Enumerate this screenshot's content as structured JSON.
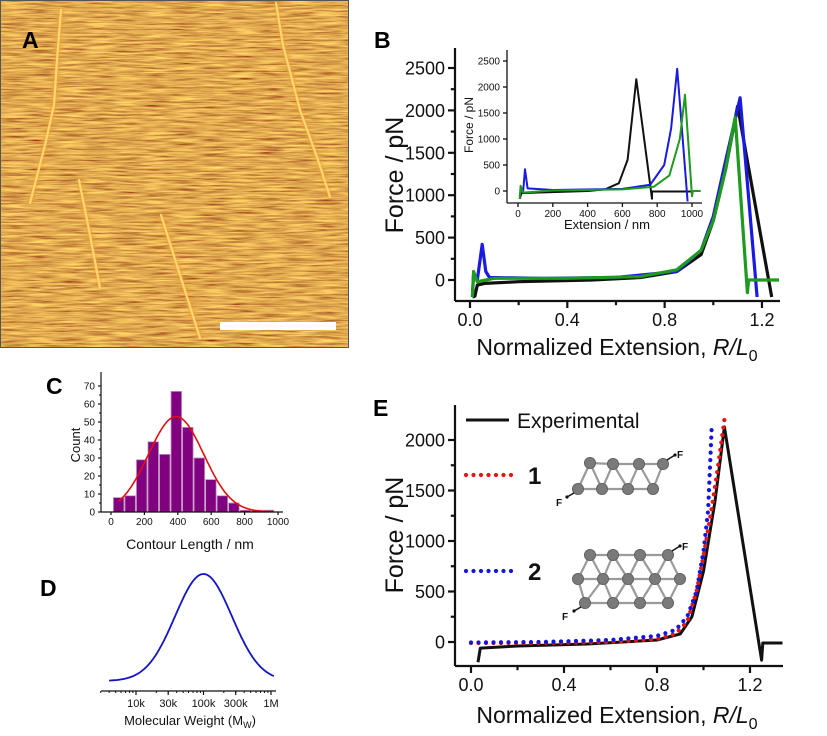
{
  "panel_labels": {
    "a": "A",
    "b": "B",
    "c": "C",
    "d": "D",
    "e": "E"
  },
  "panel_a": {
    "colors": {
      "background": "#bf6613",
      "fiber": "#f7d774",
      "scale_bar": "#ffffff"
    }
  },
  "chart_data": [
    {
      "panel": "B",
      "type": "line",
      "xlabel_prefix": "Normalized Extension, ",
      "xlabel_var": "R/L",
      "xlabel_sub": "0",
      "ylabel": "Force / pN",
      "xlim": [
        -0.06,
        1.275
      ],
      "ylim": [
        -250,
        2700
      ],
      "xticks": [
        0,
        0.4,
        0.8,
        1.2
      ],
      "xtick_labels": [
        "0.0",
        "0.4",
        "0.8",
        "1.2"
      ],
      "xminor": [
        0.2,
        0.6,
        1.0
      ],
      "yticks": [
        0,
        500,
        1000,
        1500,
        2000,
        2500
      ],
      "ytick_labels": [
        "0",
        "500",
        "1000",
        "1500",
        "2000",
        "2500"
      ],
      "grid": false,
      "series": [
        {
          "color": "#111111",
          "points": [
            [
              0.01,
              -200
            ],
            [
              0.02,
              -190
            ],
            [
              0.03,
              -60
            ],
            [
              0.06,
              -40
            ],
            [
              0.2,
              -20
            ],
            [
              0.5,
              0
            ],
            [
              0.7,
              30
            ],
            [
              0.85,
              100
            ],
            [
              0.95,
              300
            ],
            [
              1.0,
              700
            ],
            [
              1.05,
              1300
            ],
            [
              1.1,
              2050
            ],
            [
              1.24,
              -200
            ]
          ]
        },
        {
          "color": "#1a1ae0",
          "points": [
            [
              0.01,
              -200
            ],
            [
              0.015,
              80
            ],
            [
              0.03,
              0
            ],
            [
              0.05,
              420
            ],
            [
              0.065,
              100
            ],
            [
              0.08,
              30
            ],
            [
              0.3,
              20
            ],
            [
              0.6,
              30
            ],
            [
              0.85,
              100
            ],
            [
              0.95,
              350
            ],
            [
              1.0,
              750
            ],
            [
              1.05,
              1400
            ],
            [
              1.11,
              2150
            ],
            [
              1.18,
              -200
            ]
          ]
        },
        {
          "color": "#1e9a1e",
          "points": [
            [
              0.01,
              -200
            ],
            [
              0.015,
              100
            ],
            [
              0.03,
              -20
            ],
            [
              0.1,
              20
            ],
            [
              0.4,
              20
            ],
            [
              0.7,
              40
            ],
            [
              0.85,
              120
            ],
            [
              0.95,
              350
            ],
            [
              1.0,
              700
            ],
            [
              1.05,
              1300
            ],
            [
              1.09,
              1920
            ],
            [
              1.14,
              -150
            ],
            [
              1.145,
              0
            ],
            [
              1.27,
              0
            ]
          ]
        }
      ],
      "inset": {
        "type": "line",
        "xlabel": "Extension / nm",
        "ylabel": "Force / pN",
        "xlim": [
          -60,
          1060
        ],
        "ylim": [
          -250,
          2700
        ],
        "xticks": [
          0,
          200,
          400,
          600,
          800,
          1000
        ],
        "xtick_labels": [
          "0",
          "200",
          "400",
          "600",
          "800",
          "1000"
        ],
        "yticks": [
          0,
          500,
          1000,
          1500,
          2000,
          2500
        ],
        "ytick_labels": [
          "0",
          "500",
          "1000",
          "1500",
          "2000",
          "2500"
        ],
        "series": [
          {
            "color": "#111111",
            "points": [
              [
                10,
                -150
              ],
              [
                20,
                -40
              ],
              [
                100,
                -30
              ],
              [
                400,
                0
              ],
              [
                500,
                30
              ],
              [
                580,
                150
              ],
              [
                630,
                600
              ],
              [
                680,
                2150
              ],
              [
                770,
                -150
              ],
              [
                770,
                -10
              ],
              [
                1000,
                -10
              ]
            ]
          },
          {
            "color": "#1a1ae0",
            "points": [
              [
                10,
                -100
              ],
              [
                20,
                50
              ],
              [
                30,
                0
              ],
              [
                40,
                420
              ],
              [
                55,
                50
              ],
              [
                200,
                20
              ],
              [
                600,
                40
              ],
              [
                760,
                120
              ],
              [
                840,
                500
              ],
              [
                880,
                1200
              ],
              [
                915,
                2350
              ],
              [
                975,
                -200
              ]
            ]
          },
          {
            "color": "#1e9a1e",
            "points": [
              [
                10,
                -150
              ],
              [
                15,
                100
              ],
              [
                30,
                -30
              ],
              [
                200,
                10
              ],
              [
                600,
                30
              ],
              [
                780,
                80
              ],
              [
                870,
                300
              ],
              [
                930,
                1000
              ],
              [
                960,
                1850
              ],
              [
                1000,
                -100
              ],
              [
                1005,
                0
              ],
              [
                1050,
                0
              ]
            ]
          }
        ]
      }
    },
    {
      "panel": "C",
      "type": "bar",
      "xlabel": "Contour Length / nm",
      "ylabel": "Count",
      "xlim": [
        -60,
        1030
      ],
      "ylim": [
        0,
        75
      ],
      "xticks": [
        0,
        200,
        400,
        600,
        800,
        1000
      ],
      "xtick_labels": [
        "0",
        "200",
        "400",
        "600",
        "800",
        "1000"
      ],
      "yticks": [
        0,
        10,
        20,
        30,
        40,
        50,
        60,
        70
      ],
      "ytick_labels": [
        "0",
        "10",
        "20",
        "30",
        "40",
        "50",
        "60",
        "70"
      ],
      "bin_width": 69,
      "bin_centers": [
        46,
        115,
        184,
        253,
        322,
        391,
        460,
        529,
        598,
        667,
        736,
        805,
        874,
        943
      ],
      "values": [
        8,
        9,
        29,
        39,
        32,
        67,
        47,
        30,
        18,
        9,
        5,
        1,
        1,
        1
      ],
      "bar_color": "#800080",
      "fit": {
        "type": "gaussian",
        "color": "#e01010",
        "peak": 53,
        "center": 390,
        "sigma": 165,
        "x_range": [
          45,
          960
        ]
      }
    },
    {
      "panel": "D",
      "type": "line",
      "xlabel_prefix": "Molecular Weight (M",
      "xlabel_sub": "W",
      "xlabel_suffix": ")",
      "xscale": "log",
      "xlim": [
        3000,
        1170000
      ],
      "xticks": [
        10000,
        30000,
        100000,
        300000,
        1000000
      ],
      "xtick_labels": [
        "10k",
        "30k",
        "100k",
        "300k",
        "1M"
      ],
      "y_axis_shown": false,
      "series": [
        {
          "color": "#1414c8",
          "distribution": "log-normal",
          "mode": 100000,
          "sigma_log10": 0.42,
          "x_range": [
            4000,
            1150000
          ]
        }
      ]
    },
    {
      "panel": "E",
      "type": "line",
      "xlabel_prefix": "Normalized Extension, ",
      "xlabel_var": "R/L",
      "xlabel_sub": "0",
      "ylabel": "Force / pN",
      "xlim": [
        -0.07,
        1.34
      ],
      "ylim": [
        -240,
        2350
      ],
      "xticks": [
        0,
        0.4,
        0.8,
        1.2
      ],
      "xtick_labels": [
        "0.0",
        "0.4",
        "0.8",
        "1.2"
      ],
      "xminor": [
        0.2,
        0.6,
        1.0
      ],
      "yticks": [
        0,
        500,
        1000,
        1500,
        2000
      ],
      "ytick_labels": [
        "0",
        "500",
        "1000",
        "1500",
        "2000"
      ],
      "legend_position": "top-left",
      "series": [
        {
          "name": "Experimental",
          "style": "solid",
          "color": "#111111",
          "points": [
            [
              0.03,
              -200
            ],
            [
              0.04,
              -60
            ],
            [
              0.2,
              -40
            ],
            [
              0.5,
              -20
            ],
            [
              0.8,
              20
            ],
            [
              0.9,
              80
            ],
            [
              0.95,
              250
            ],
            [
              1.0,
              700
            ],
            [
              1.05,
              1400
            ],
            [
              1.09,
              2130
            ],
            [
              1.25,
              -180
            ],
            [
              1.255,
              -10
            ],
            [
              1.34,
              -10
            ]
          ]
        },
        {
          "name": "1",
          "style": "dotted",
          "color": "#e81414",
          "points": [
            [
              0,
              -10
            ],
            [
              0.3,
              -10
            ],
            [
              0.6,
              0
            ],
            [
              0.8,
              30
            ],
            [
              0.88,
              80
            ],
            [
              0.93,
              200
            ],
            [
              0.97,
              500
            ],
            [
              1.0,
              850
            ],
            [
              1.03,
              1250
            ],
            [
              1.06,
              1700
            ],
            [
              1.09,
              2200
            ]
          ]
        },
        {
          "name": "2",
          "style": "dotted",
          "color": "#1414e0",
          "points": [
            [
              0,
              -5
            ],
            [
              0.3,
              0
            ],
            [
              0.6,
              20
            ],
            [
              0.8,
              60
            ],
            [
              0.88,
              120
            ],
            [
              0.93,
              250
            ],
            [
              0.97,
              500
            ],
            [
              1.0,
              900
            ],
            [
              1.02,
              1300
            ],
            [
              1.035,
              2100
            ]
          ]
        }
      ],
      "structure_force_label": "F"
    }
  ]
}
